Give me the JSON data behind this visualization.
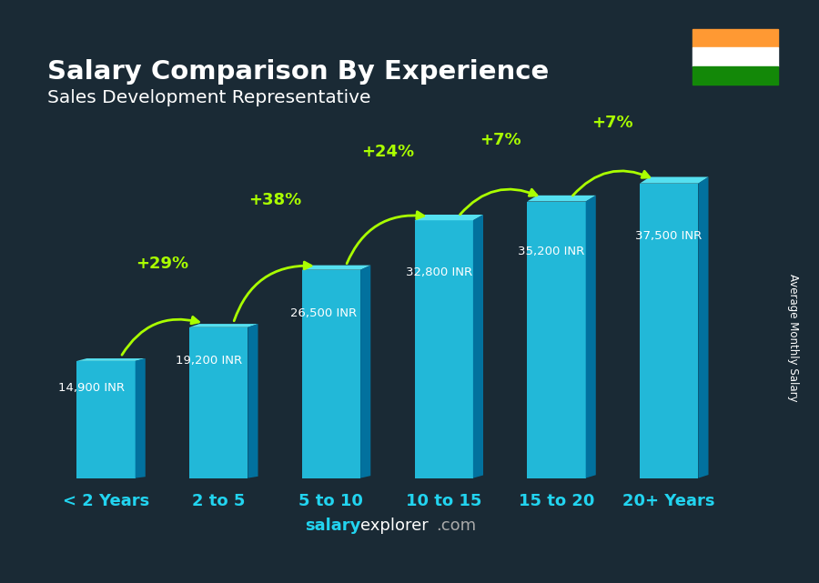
{
  "title": "Salary Comparison By Experience",
  "subtitle": "Sales Development Representative",
  "categories": [
    "< 2 Years",
    "2 to 5",
    "5 to 10",
    "10 to 15",
    "15 to 20",
    "20+ Years"
  ],
  "values": [
    14900,
    19200,
    26500,
    32800,
    35200,
    37500
  ],
  "value_labels": [
    "14,900 INR",
    "19,200 INR",
    "26,500 INR",
    "32,800 INR",
    "35,200 INR",
    "37,500 INR"
  ],
  "pct_changes": [
    "+29%",
    "+38%",
    "+24%",
    "+7%",
    "+7%"
  ],
  "bar_color_top": "#55e0f0",
  "bar_color_mid": "#22b8d8",
  "bar_color_bottom": "#007aaa",
  "bar_color_side": "#005a8a",
  "bg_color": "#1a2a35",
  "title_color": "#ffffff",
  "subtitle_color": "#ffffff",
  "label_color": "#ffffff",
  "pct_color": "#aaff00",
  "axis_label_color": "#22d4f0",
  "ylabel": "Average Monthly Salary",
  "ylim": [
    0,
    46000
  ],
  "flag_orange": "#FF9933",
  "flag_white": "#FFFFFF",
  "flag_green": "#138808",
  "flag_blue": "#000080"
}
